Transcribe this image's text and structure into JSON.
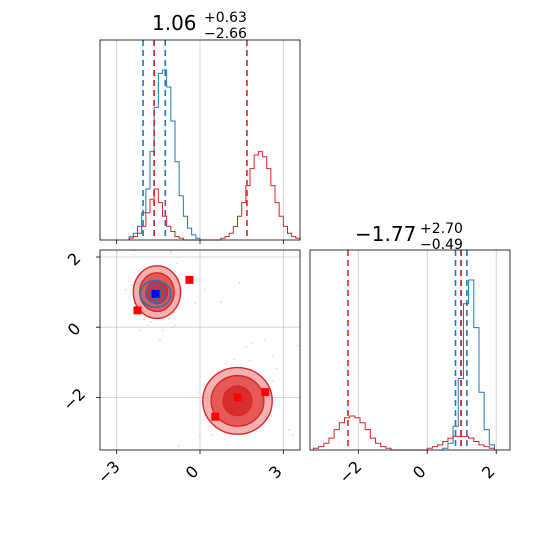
{
  "colors": {
    "red": "#d62728",
    "blue": "#1f77b4",
    "red_fill_light": "#f2a3a3",
    "red_fill_dark": "#e34a4a",
    "marker_red": "#ff0000",
    "marker_blue": "#0000ff",
    "grid": "#cccccc"
  },
  "chart_data": [
    {
      "type": "histogram",
      "panel": "marginal-x",
      "title": {
        "value": "1.06",
        "upper": "+0.63",
        "lower": "−2.66"
      },
      "xlim": [
        -3.6,
        3.6
      ],
      "bin_width": 0.15,
      "series": [
        {
          "name": "",
          "color": "#1f77b4",
          "bin_start": -2.55,
          "counts": [
            0.02,
            0.04,
            0.08,
            0.16,
            0.3,
            0.52,
            0.78,
            0.98,
            1.0,
            0.9,
            0.7,
            0.46,
            0.26,
            0.14,
            0.07,
            0.03,
            0.01
          ],
          "quantiles": [
            -2.05,
            -1.65,
            -1.25
          ]
        },
        {
          "name": "",
          "color": "#d62728",
          "bin_start": -2.55,
          "counts": [
            0.01,
            0.02,
            0.04,
            0.08,
            0.16,
            0.24,
            0.3,
            0.22,
            0.14,
            0.08,
            0.05,
            0.02,
            0.01,
            0,
            0,
            0,
            0,
            0,
            0,
            0,
            0,
            0,
            0.01,
            0.02,
            0.04,
            0.08,
            0.14,
            0.22,
            0.32,
            0.42,
            0.5,
            0.52,
            0.49,
            0.42,
            0.32,
            0.22,
            0.14,
            0.08,
            0.04,
            0.02,
            0.01
          ],
          "quantiles": [
            -1.65,
            1.69
          ]
        }
      ]
    },
    {
      "type": "histogram",
      "panel": "marginal-y",
      "title": {
        "value": "−1.77",
        "upper": "+2.70",
        "lower": "−0.49"
      },
      "xlim": [
        -3.4,
        2.4
      ],
      "xticks": [
        -2,
        0,
        2
      ],
      "bin_width": 0.15,
      "series": [
        {
          "name": "",
          "color": "#1f77b4",
          "bin_start": 0.45,
          "counts": [
            0.01,
            0.04,
            0.14,
            0.42,
            0.86,
            1.0,
            0.72,
            0.34,
            0.12,
            0.03
          ],
          "quantiles": [
            0.82,
            0.98,
            1.15
          ]
        },
        {
          "name": "",
          "color": "#d62728",
          "bin_start": -3.3,
          "counts": [
            0.01,
            0.02,
            0.04,
            0.07,
            0.12,
            0.16,
            0.19,
            0.2,
            0.19,
            0.16,
            0.12,
            0.07,
            0.04,
            0.02,
            0.01,
            0,
            0,
            0,
            0,
            0,
            0,
            0,
            0.01,
            0.02,
            0.03,
            0.05,
            0.07,
            0.08,
            0.08,
            0.08,
            0.07,
            0.05,
            0.03,
            0.02,
            0.01
          ],
          "quantiles": [
            -2.3,
            0.98
          ]
        }
      ]
    },
    {
      "type": "scatter-contour",
      "panel": "joint",
      "xlim": [
        -3.6,
        3.6
      ],
      "ylim": [
        -3.5,
        2.2
      ],
      "xticks": [
        -3,
        0,
        3
      ],
      "yticks": [
        -2,
        0,
        2
      ],
      "series": [
        {
          "name": "",
          "color": "#d62728",
          "modes": [
            {
              "center": [
                -1.55,
                1.0
              ],
              "radii": [
                [
                  0.85,
                  0.75
                ],
                [
                  0.62,
                  0.55
                ],
                [
                  0.38,
                  0.33
                ]
              ]
            },
            {
              "center": [
                1.35,
                -2.1
              ],
              "radii": [
                [
                  1.25,
                  0.95
                ],
                [
                  0.95,
                  0.72
                ],
                [
                  0.52,
                  0.42
                ]
              ]
            }
          ],
          "markers": [
            [
              -2.25,
              0.48
            ],
            [
              -0.38,
              1.35
            ],
            [
              0.55,
              -2.55
            ],
            [
              1.35,
              -2.0
            ],
            [
              2.35,
              -1.85
            ]
          ]
        },
        {
          "name": "",
          "color": "#1f77b4",
          "modes": [
            {
              "center": [
                -1.6,
                0.95
              ],
              "radii": [
                [
                  0.55,
                  0.38
                ],
                [
                  0.35,
                  0.25
                ],
                [
                  0.18,
                  0.13
                ]
              ]
            }
          ],
          "markers": [
            [
              -1.6,
              0.95
            ]
          ]
        }
      ]
    }
  ]
}
